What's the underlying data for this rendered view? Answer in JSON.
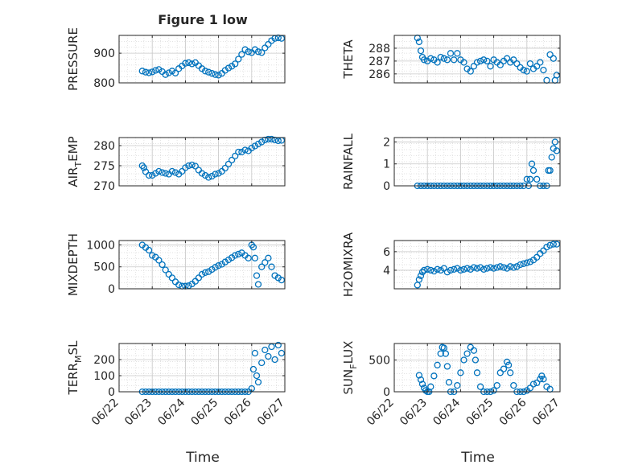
{
  "figure": {
    "title": "Figure 1 low",
    "marker_color": "#0072BD",
    "axis_color": "#262626",
    "grid_color": "#d9d9d9"
  },
  "chart_data": [
    {
      "id": "pressure",
      "type": "scatter",
      "marker": "open-circle",
      "ylabel": "PRESSURE",
      "ylabel_sub": "",
      "xlim": [
        "06/22",
        "06/27"
      ],
      "ylim": [
        800,
        960
      ],
      "yticks": [
        800,
        900
      ],
      "xtick_labels_shown": false,
      "grid": "major+minor",
      "title": "Figure 1 low",
      "x_days": [
        0.7,
        0.8,
        0.9,
        1.0,
        1.1,
        1.2,
        1.3,
        1.4,
        1.5,
        1.6,
        1.7,
        1.8,
        1.9,
        2.0,
        2.1,
        2.2,
        2.3,
        2.4,
        2.5,
        2.6,
        2.7,
        2.8,
        2.9,
        3.0,
        3.1,
        3.2,
        3.3,
        3.4,
        3.5,
        3.6,
        3.7,
        3.8,
        3.9,
        4.0,
        4.1,
        4.2,
        4.3,
        4.4,
        4.5,
        4.6,
        4.7,
        4.8,
        4.9
      ],
      "y": [
        840,
        836,
        834,
        837,
        842,
        845,
        838,
        828,
        834,
        840,
        833,
        848,
        857,
        866,
        868,
        864,
        868,
        858,
        848,
        840,
        836,
        832,
        828,
        826,
        832,
        842,
        850,
        856,
        864,
        880,
        896,
        912,
        905,
        902,
        912,
        905,
        902,
        918,
        930,
        942,
        950,
        952,
        950
      ]
    },
    {
      "id": "theta",
      "type": "scatter",
      "marker": "open-circle",
      "ylabel": "THETA",
      "ylabel_sub": "",
      "xlim": [
        "06/22",
        "06/27"
      ],
      "ylim": [
        285.3,
        289
      ],
      "yticks": [
        286,
        287,
        288
      ],
      "xtick_labels_shown": false,
      "grid": "major+minor",
      "x_days": [
        0.7,
        0.75,
        0.8,
        0.85,
        0.9,
        1.0,
        1.1,
        1.2,
        1.3,
        1.4,
        1.5,
        1.6,
        1.7,
        1.8,
        1.9,
        2.0,
        2.1,
        2.2,
        2.3,
        2.4,
        2.5,
        2.6,
        2.7,
        2.8,
        2.9,
        3.0,
        3.1,
        3.2,
        3.3,
        3.4,
        3.5,
        3.6,
        3.7,
        3.8,
        3.9,
        4.0,
        4.1,
        4.2,
        4.3,
        4.4,
        4.5,
        4.6,
        4.7,
        4.8,
        4.85,
        4.9
      ],
      "y": [
        288.8,
        288.5,
        287.8,
        287.3,
        287.1,
        287.0,
        287.2,
        287.1,
        286.9,
        287.3,
        287.2,
        287.1,
        287.6,
        287.1,
        287.6,
        287.1,
        286.9,
        286.4,
        286.2,
        286.6,
        286.9,
        287.0,
        287.1,
        287.0,
        286.6,
        287.1,
        286.9,
        286.7,
        287.0,
        287.2,
        286.9,
        287.1,
        286.8,
        286.5,
        286.3,
        286.2,
        286.8,
        286.4,
        286.6,
        286.9,
        286.3,
        285.5,
        287.5,
        287.2,
        285.5,
        285.9
      ]
    },
    {
      "id": "air_temp",
      "type": "scatter",
      "marker": "open-circle",
      "ylabel": "AIR",
      "ylabel_sub": "T",
      "ylabel_rest": "EMP",
      "xlim": [
        "06/22",
        "06/27"
      ],
      "ylim": [
        270,
        282
      ],
      "yticks": [
        270,
        275,
        280
      ],
      "xtick_labels_shown": false,
      "grid": "major+minor",
      "x_days": [
        0.7,
        0.75,
        0.8,
        0.9,
        1.0,
        1.1,
        1.2,
        1.3,
        1.4,
        1.5,
        1.6,
        1.7,
        1.8,
        1.9,
        2.0,
        2.1,
        2.2,
        2.3,
        2.4,
        2.5,
        2.6,
        2.7,
        2.8,
        2.9,
        3.0,
        3.1,
        3.2,
        3.3,
        3.4,
        3.5,
        3.6,
        3.7,
        3.8,
        3.9,
        4.0,
        4.1,
        4.2,
        4.3,
        4.4,
        4.5,
        4.6,
        4.7,
        4.8,
        4.9
      ],
      "y": [
        275,
        274.5,
        273.5,
        272.6,
        272.6,
        273.1,
        273.6,
        273.3,
        273.1,
        272.9,
        273.6,
        273.3,
        272.9,
        273.6,
        274.5,
        275,
        275.2,
        274.9,
        273.9,
        273.1,
        272.6,
        272.1,
        272.4,
        272.9,
        273.1,
        273.6,
        274.4,
        275.4,
        276.4,
        277.4,
        278.4,
        278.4,
        278.9,
        278.7,
        279.4,
        279.9,
        280.4,
        280.9,
        281.4,
        281.6,
        281.6,
        281.4,
        281.2,
        281.3
      ]
    },
    {
      "id": "rainfall",
      "type": "scatter",
      "marker": "open-circle",
      "ylabel": "RAINFALL",
      "ylabel_sub": "",
      "xlim": [
        "06/22",
        "06/27"
      ],
      "ylim": [
        0,
        2.2
      ],
      "yticks": [
        0,
        1,
        2
      ],
      "xtick_labels_shown": false,
      "grid": "major+minor",
      "x_days": [
        0.7,
        0.8,
        0.9,
        1.0,
        1.1,
        1.2,
        1.3,
        1.4,
        1.5,
        1.6,
        1.7,
        1.8,
        1.9,
        2.0,
        2.1,
        2.2,
        2.3,
        2.4,
        2.5,
        2.6,
        2.7,
        2.8,
        2.9,
        3.0,
        3.1,
        3.2,
        3.3,
        3.4,
        3.5,
        3.6,
        3.7,
        3.8,
        3.9,
        4.0,
        4.05,
        4.1,
        4.15,
        4.2,
        4.3,
        4.4,
        4.5,
        4.6,
        4.65,
        4.7,
        4.75,
        4.8,
        4.85,
        4.9
      ],
      "y": [
        0,
        0,
        0,
        0,
        0,
        0,
        0,
        0,
        0,
        0,
        0,
        0,
        0,
        0,
        0,
        0,
        0,
        0,
        0,
        0,
        0,
        0,
        0,
        0,
        0,
        0,
        0,
        0,
        0,
        0,
        0,
        0,
        0,
        0.3,
        0,
        0.3,
        1.0,
        0.7,
        0.3,
        0,
        0,
        0,
        0.7,
        0.7,
        1.3,
        1.7,
        2.0,
        1.6
      ]
    },
    {
      "id": "mixdepth",
      "type": "scatter",
      "marker": "open-circle",
      "ylabel": "MIXDEPTH",
      "ylabel_sub": "",
      "xlim": [
        "06/22",
        "06/27"
      ],
      "ylim": [
        0,
        1100
      ],
      "yticks": [
        0,
        500,
        1000
      ],
      "xtick_labels_shown": false,
      "grid": "major+minor",
      "x_days": [
        0.7,
        0.8,
        0.9,
        1.0,
        1.1,
        1.2,
        1.3,
        1.4,
        1.5,
        1.6,
        1.7,
        1.8,
        1.9,
        2.0,
        2.1,
        2.2,
        2.3,
        2.4,
        2.5,
        2.6,
        2.7,
        2.8,
        2.9,
        3.0,
        3.1,
        3.2,
        3.3,
        3.4,
        3.5,
        3.6,
        3.7,
        3.8,
        3.9,
        4.0,
        4.05,
        4.1,
        4.15,
        4.2,
        4.3,
        4.4,
        4.5,
        4.6,
        4.7,
        4.8,
        4.9
      ],
      "y": [
        1000,
        940,
        880,
        760,
        720,
        650,
        550,
        430,
        330,
        250,
        160,
        90,
        60,
        60,
        70,
        110,
        170,
        250,
        330,
        370,
        390,
        440,
        490,
        530,
        560,
        610,
        660,
        710,
        760,
        790,
        820,
        760,
        700,
        1000,
        950,
        700,
        300,
        100,
        500,
        600,
        700,
        500,
        300,
        250,
        200
      ]
    },
    {
      "id": "h2omixra",
      "type": "scatter",
      "marker": "open-circle",
      "ylabel": "H2OMIXRA",
      "ylabel_sub": "",
      "xlim": [
        "06/22",
        "06/27"
      ],
      "ylim": [
        2,
        7.2
      ],
      "yticks": [
        4,
        6
      ],
      "xtick_labels_shown": false,
      "grid": "major+minor",
      "x_days": [
        0.7,
        0.75,
        0.8,
        0.85,
        0.9,
        1.0,
        1.1,
        1.2,
        1.3,
        1.4,
        1.5,
        1.6,
        1.7,
        1.8,
        1.9,
        2.0,
        2.1,
        2.2,
        2.3,
        2.4,
        2.5,
        2.6,
        2.7,
        2.8,
        2.9,
        3.0,
        3.1,
        3.2,
        3.3,
        3.4,
        3.5,
        3.6,
        3.7,
        3.8,
        3.9,
        4.0,
        4.1,
        4.2,
        4.3,
        4.4,
        4.5,
        4.6,
        4.7,
        4.8,
        4.9
      ],
      "y": [
        2.4,
        3.0,
        3.4,
        3.8,
        4.0,
        4.1,
        4.0,
        3.9,
        4.1,
        4.0,
        4.2,
        3.8,
        4.0,
        4.1,
        4.2,
        4.0,
        4.1,
        4.2,
        4.1,
        4.3,
        4.2,
        4.3,
        4.1,
        4.2,
        4.3,
        4.2,
        4.3,
        4.4,
        4.3,
        4.2,
        4.4,
        4.3,
        4.4,
        4.6,
        4.7,
        4.8,
        4.9,
        5.1,
        5.4,
        5.8,
        6.1,
        6.5,
        6.7,
        6.8,
        6.8
      ]
    },
    {
      "id": "terr_msl",
      "type": "scatter",
      "marker": "open-circle",
      "ylabel": "TERR",
      "ylabel_sub": "M",
      "ylabel_rest": "SL",
      "xlim": [
        "06/22",
        "06/27"
      ],
      "ylim": [
        0,
        300
      ],
      "yticks": [
        0,
        100,
        200
      ],
      "xtick_labels_shown": false,
      "grid": "major+minor",
      "x_days": [
        0.7,
        0.8,
        0.9,
        1.0,
        1.1,
        1.2,
        1.3,
        1.4,
        1.5,
        1.6,
        1.7,
        1.8,
        1.9,
        2.0,
        2.1,
        2.2,
        2.3,
        2.4,
        2.5,
        2.6,
        2.7,
        2.8,
        2.9,
        3.0,
        3.1,
        3.2,
        3.3,
        3.4,
        3.5,
        3.6,
        3.7,
        3.8,
        3.9,
        4.0,
        4.05,
        4.1,
        4.15,
        4.2,
        4.3,
        4.4,
        4.5,
        4.6,
        4.7,
        4.8,
        4.9
      ],
      "y": [
        0,
        0,
        0,
        0,
        0,
        0,
        0,
        0,
        0,
        0,
        0,
        0,
        0,
        0,
        0,
        0,
        0,
        0,
        0,
        0,
        0,
        0,
        0,
        0,
        0,
        0,
        0,
        0,
        0,
        0,
        0,
        0,
        0,
        20,
        140,
        240,
        100,
        60,
        180,
        260,
        220,
        280,
        200,
        290,
        240
      ]
    },
    {
      "id": "sun_flux",
      "type": "scatter",
      "marker": "open-circle",
      "ylabel": "SUN",
      "ylabel_sub": "F",
      "ylabel_rest": "LUX",
      "xlim": [
        "06/22",
        "06/27"
      ],
      "ylim": [
        0,
        760
      ],
      "yticks": [
        0,
        500
      ],
      "xtick_labels_shown": true,
      "xticks": [
        "06/22",
        "06/23",
        "06/24",
        "06/25",
        "06/26",
        "06/27"
      ],
      "xlabel": "Time",
      "grid": "major+minor",
      "x_days": [
        0.75,
        0.8,
        0.85,
        0.9,
        0.95,
        1.0,
        1.05,
        1.1,
        1.2,
        1.3,
        1.4,
        1.45,
        1.5,
        1.55,
        1.6,
        1.65,
        1.7,
        1.8,
        1.9,
        2.0,
        2.1,
        2.2,
        2.3,
        2.4,
        2.45,
        2.5,
        2.6,
        2.7,
        2.8,
        2.9,
        3.0,
        3.1,
        3.2,
        3.3,
        3.4,
        3.45,
        3.5,
        3.6,
        3.7,
        3.8,
        3.9,
        4.0,
        4.1,
        4.2,
        4.3,
        4.4,
        4.45,
        4.5,
        4.6,
        4.7
      ],
      "y": [
        260,
        190,
        120,
        60,
        20,
        0,
        0,
        80,
        250,
        420,
        600,
        700,
        690,
        600,
        400,
        150,
        0,
        0,
        100,
        300,
        500,
        600,
        700,
        650,
        500,
        300,
        80,
        0,
        0,
        0,
        20,
        100,
        300,
        360,
        470,
        420,
        300,
        100,
        0,
        0,
        0,
        20,
        60,
        120,
        140,
        200,
        250,
        200,
        80,
        40
      ]
    }
  ]
}
